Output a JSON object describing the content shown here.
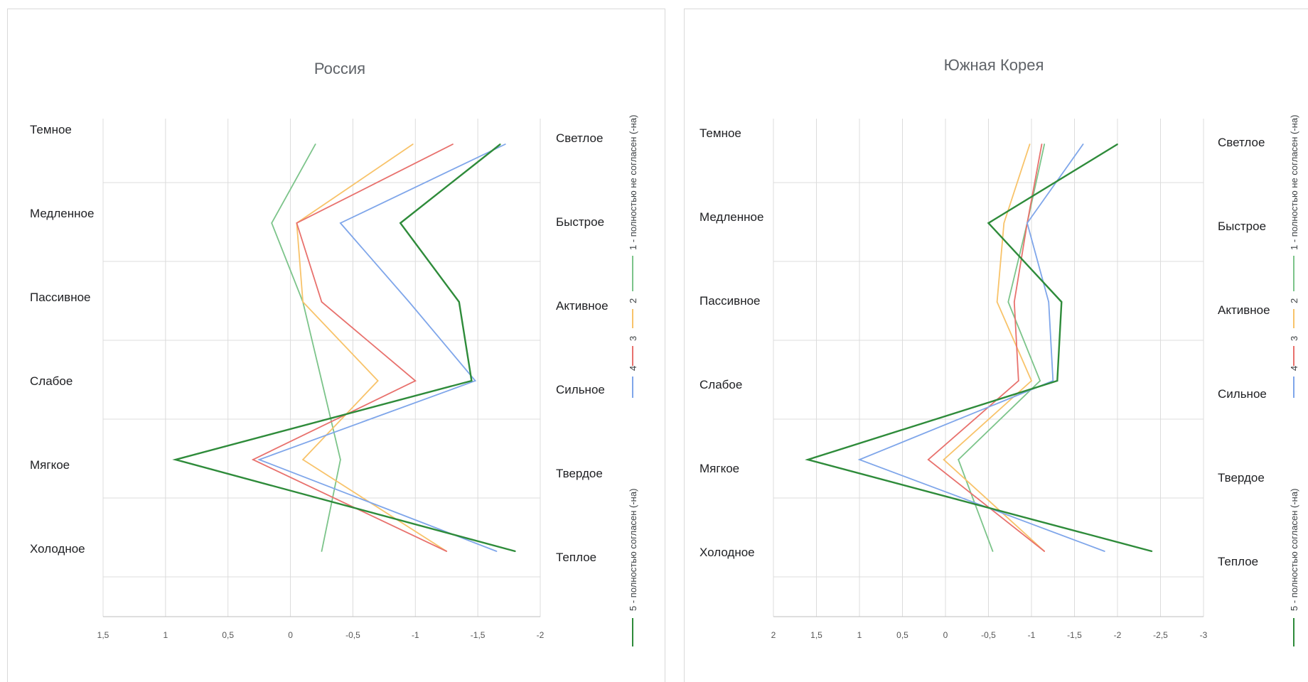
{
  "chart_data": [
    {
      "type": "line",
      "title": "Россия",
      "left_labels": [
        "Темное",
        "Медленное",
        "Пассивное",
        "Слабое",
        "Мягкое",
        "Холодное"
      ],
      "right_labels": [
        "Светлое",
        "Быстрое",
        "Активное",
        "Сильное",
        "Твердое",
        "Теплое"
      ],
      "x_ticks": [
        "1,5",
        "1",
        "0,5",
        "0",
        "-0,5",
        "-1",
        "-1,5",
        "-2"
      ],
      "xlim": [
        1.5,
        -2
      ],
      "grid": true,
      "legend_position": "right",
      "series": [
        {
          "name": "1 - полностью не согласен (-на)",
          "color": "#7cc48a",
          "values": [
            -0.2,
            0.15,
            -0.1,
            -0.25,
            -0.4,
            -0.25
          ]
        },
        {
          "name": "2",
          "color": "#f8c36a",
          "values": [
            -0.98,
            -0.05,
            -0.1,
            -0.7,
            -0.1,
            -1.25
          ]
        },
        {
          "name": "3",
          "color": "#e8716d",
          "values": [
            -1.3,
            -0.05,
            -0.25,
            -1.0,
            0.3,
            -1.25
          ]
        },
        {
          "name": "4",
          "color": "#7fa6ea",
          "values": [
            -1.72,
            -0.4,
            -0.95,
            -1.48,
            0.25,
            -1.65
          ]
        },
        {
          "name": "5 - полностью согласен (-на)",
          "color": "#2e8b3a",
          "values": [
            -1.68,
            -0.88,
            -1.35,
            -1.45,
            0.92,
            -1.8
          ]
        }
      ]
    },
    {
      "type": "line",
      "title": "Южная Корея",
      "left_labels": [
        "Темное",
        "Медленное",
        "Пассивное",
        "Слабое",
        "Мягкое",
        "Холодное"
      ],
      "right_labels": [
        "Светлое",
        "Быстрое",
        "Активное",
        "Сильное",
        "Твердое",
        "Теплое"
      ],
      "x_ticks": [
        "2",
        "1,5",
        "1",
        "0,5",
        "0",
        "-0,5",
        "-1",
        "-1,5",
        "-2",
        "-2,5",
        "-3"
      ],
      "xlim": [
        2,
        -3
      ],
      "grid": true,
      "legend_position": "right",
      "series": [
        {
          "name": "1 - полностью не согласен (-на)",
          "color": "#7cc48a",
          "values": [
            -1.15,
            -0.95,
            -0.73,
            -1.1,
            -0.15,
            -0.55
          ]
        },
        {
          "name": "2",
          "color": "#f8c36a",
          "values": [
            -0.98,
            -0.68,
            -0.6,
            -1.0,
            0.02,
            -1.15
          ]
        },
        {
          "name": "3",
          "color": "#e8716d",
          "values": [
            -1.12,
            -0.95,
            -0.8,
            -0.85,
            0.2,
            -1.15
          ]
        },
        {
          "name": "4",
          "color": "#7fa6ea",
          "values": [
            -1.6,
            -0.95,
            -1.2,
            -1.25,
            1.0,
            -1.85
          ]
        },
        {
          "name": "5 - полностью согласен (-на)",
          "color": "#2e8b3a",
          "values": [
            -2.0,
            -0.5,
            -1.35,
            -1.3,
            1.6,
            -2.4
          ]
        }
      ]
    }
  ]
}
